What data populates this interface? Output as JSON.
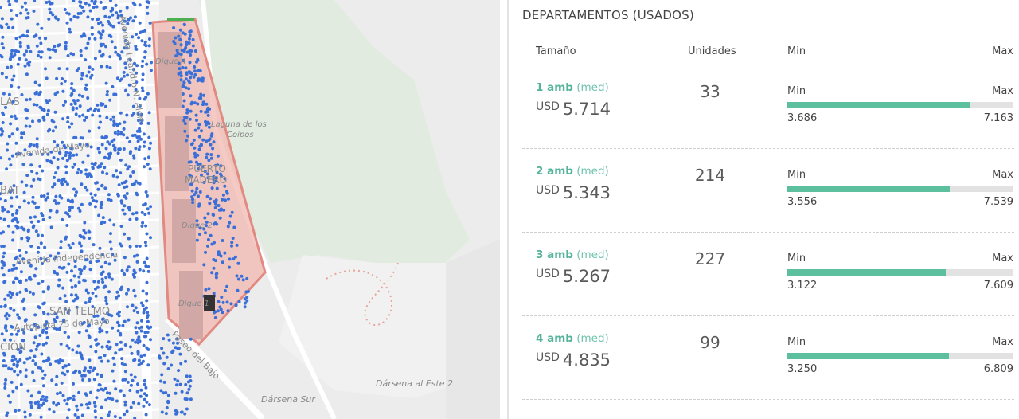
{
  "map": {
    "labels": [
      "Dique 4",
      "Laguna de los",
      "Coipos",
      "PUERTO",
      "MADERO",
      "Dique 2",
      "Dique 1",
      "Avenida Leandro N. Alem",
      "Avenida de Mayo",
      "Avenida Independencia",
      "SAN TELMO",
      "Autopista 25 de Mayo",
      "Paseo del Bajo",
      "Dársena Sur",
      "Dársena al Este 2",
      "LAS",
      "BAT",
      "CIÓN"
    ]
  },
  "panel": {
    "title": "DEPARTAMENTOS (USADOS)",
    "headers": {
      "size": "Tamaño",
      "units": "Unidades",
      "min": "Min",
      "max": "Max"
    },
    "rows": [
      {
        "amb": "1 amb",
        "med": "(med)",
        "currency": "USD",
        "price": "5.714",
        "units": "33",
        "min_label": "Min",
        "max_label": "Max",
        "min": "3.686",
        "max": "7.163",
        "fill_fraction": 0.81
      },
      {
        "amb": "2 amb",
        "med": "(med)",
        "currency": "USD",
        "price": "5.343",
        "units": "214",
        "min_label": "Min",
        "max_label": "Max",
        "min": "3.556",
        "max": "7.539",
        "fill_fraction": 0.72
      },
      {
        "amb": "3 amb",
        "med": "(med)",
        "currency": "USD",
        "price": "5.267",
        "units": "227",
        "min_label": "Min",
        "max_label": "Max",
        "min": "3.122",
        "max": "7.609",
        "fill_fraction": 0.7
      },
      {
        "amb": "4 amb",
        "med": "(med)",
        "currency": "USD",
        "price": "4.835",
        "units": "99",
        "min_label": "Min",
        "max_label": "Max",
        "min": "3.250",
        "max": "6.809",
        "fill_fraction": 0.715
      }
    ]
  },
  "colors": {
    "accent": "#5cbf9d",
    "dots": "#3a6fd8",
    "polygon_fill": "#f2b8b0",
    "polygon_stroke": "#e08a82",
    "water": "#ededed",
    "land": "#e3ece3"
  }
}
